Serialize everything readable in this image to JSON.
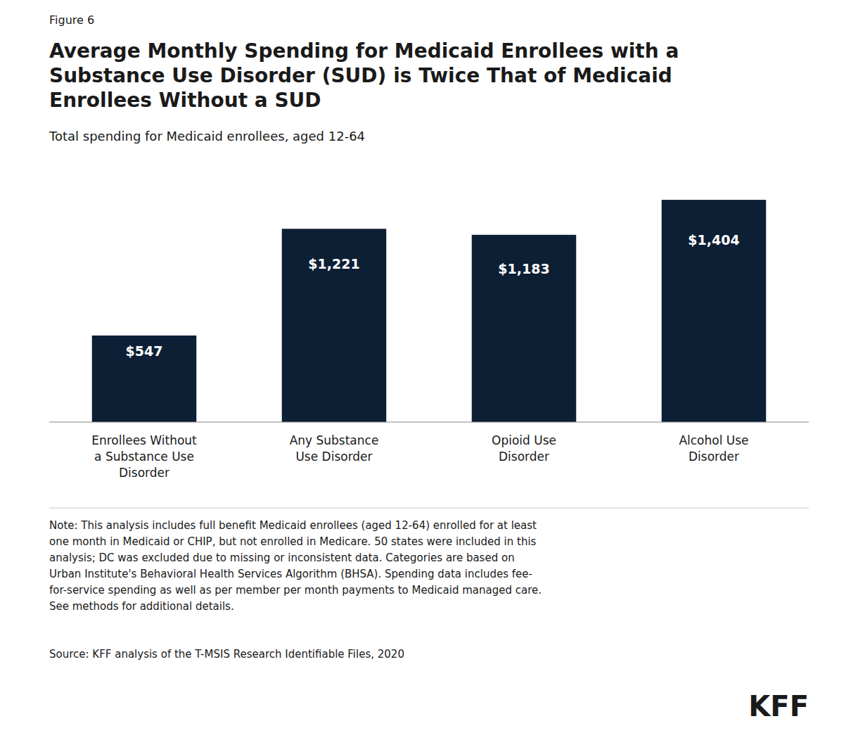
{
  "chart_data": {
    "type": "bar",
    "figure_label": "Figure 6",
    "title": "Average Monthly Spending for Medicaid Enrollees with a\nSubstance Use Disorder (SUD) is Twice That of Medicaid\nEnrollees Without a SUD",
    "subtitle": "Total spending for Medicaid enrollees, aged 12-64",
    "categories": [
      "Enrollees Without\na Substance Use\nDisorder",
      "Any Substance\nUse Disorder",
      "Opioid Use\nDisorder",
      "Alcohol Use\nDisorder"
    ],
    "values": [
      547,
      1221,
      1183,
      1404
    ],
    "value_labels": [
      "$547",
      "$1,221",
      "$1,183",
      "$1,404"
    ],
    "data_labels": true,
    "color": "#0d1f35",
    "ylim": [
      0,
      1600
    ],
    "grid": false,
    "tick_labels": "x",
    "note": "Note: This analysis includes full benefit Medicaid enrollees (aged 12-64) enrolled for at least\none month in Medicaid or CHIP, but not enrolled in Medicare. 50 states were included in this\nanalysis; DC was excluded due to missing or inconsistent data. Categories are based on\nUrban Institute's Behavioral Health Services Algorithm (BHSA). Spending data includes fee-\nfor-service spending as well as per member per month payments to Medicaid managed care.\nSee methods for additional details.",
    "source": "Source: KFF analysis of the T-MSIS Research Identifiable Files, 2020",
    "brand": "KFF"
  }
}
